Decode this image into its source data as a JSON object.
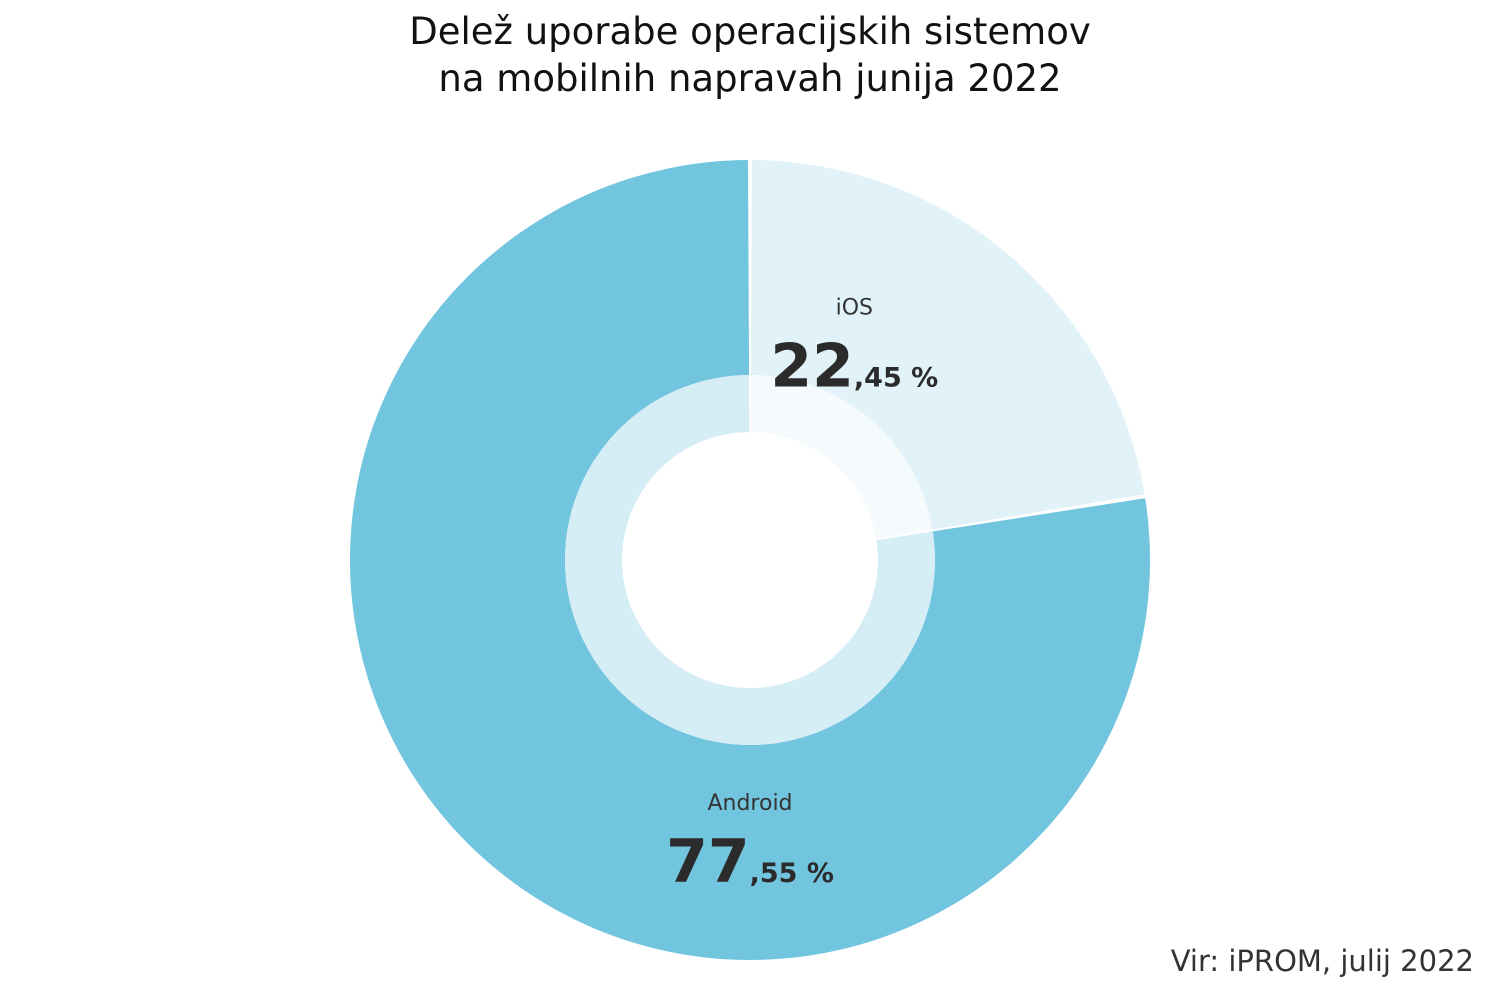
{
  "chart_data": {
    "type": "pie",
    "title_lines": [
      "Delež uporabe operacijskih sistemov",
      "na mobilnih napravah junija 2022"
    ],
    "categories": [
      "iOS",
      "Android"
    ],
    "values": [
      22.45,
      77.55
    ],
    "value_big": [
      "22",
      "77"
    ],
    "value_small": [
      ",45 %",
      ",55 %"
    ],
    "colors": [
      "#e1f3f8",
      "#72c5df"
    ],
    "inner_colors": [
      "#f5fbfd",
      "#d5edf5"
    ],
    "source": "Vir: iPROM, julij 2022"
  }
}
